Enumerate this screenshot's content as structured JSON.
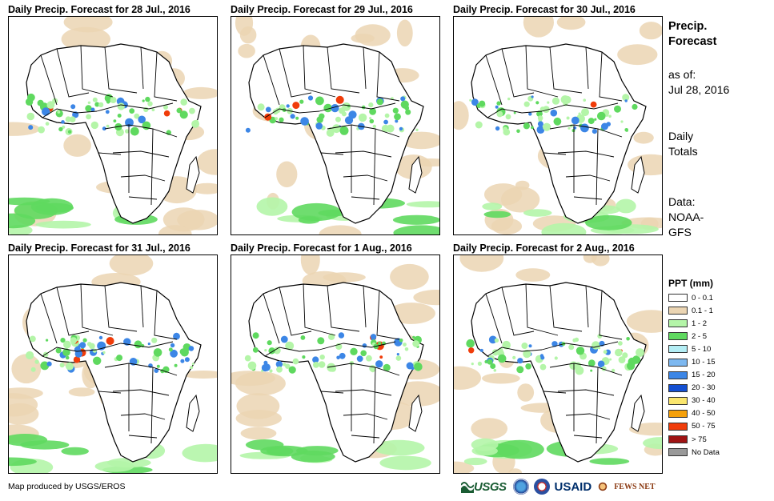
{
  "panels": [
    {
      "title": "Daily Precip. Forecast for 28 Jul., 2016"
    },
    {
      "title": "Daily Precip. Forecast for 29 Jul., 2016"
    },
    {
      "title": "Daily Precip. Forecast for 30 Jul., 2016"
    },
    {
      "title": "Daily Precip. Forecast for 31 Jul., 2016"
    },
    {
      "title": "Daily Precip. Forecast for 1 Aug., 2016"
    },
    {
      "title": "Daily Precip. Forecast for 2 Aug., 2016"
    }
  ],
  "sidebar": {
    "title_line1": "Precip.",
    "title_line2": "Forecast",
    "asof_label": "as of:",
    "asof_date": "Jul 28, 2016",
    "totals_line1": "Daily",
    "totals_line2": "Totals",
    "data_label": "Data:",
    "data_source_line1": "NOAA-",
    "data_source_line2": "GFS"
  },
  "legend": {
    "title": "PPT (mm)",
    "items": [
      {
        "label": "0 - 0.1",
        "color": "#ffffff"
      },
      {
        "label": "0.1 - 1",
        "color": "#ebd5b3"
      },
      {
        "label": "1 - 2",
        "color": "#b4f5a8"
      },
      {
        "label": "2 - 5",
        "color": "#5fd95f"
      },
      {
        "label": "5 - 10",
        "color": "#b4eef5"
      },
      {
        "label": "10 - 15",
        "color": "#7db8f0"
      },
      {
        "label": "15 - 20",
        "color": "#3c86e6"
      },
      {
        "label": "20 - 30",
        "color": "#1450d2"
      },
      {
        "label": "30 - 40",
        "color": "#fae66e"
      },
      {
        "label": "40 - 50",
        "color": "#f5a00a"
      },
      {
        "label": "50 - 75",
        "color": "#f03c0a"
      },
      {
        "label": "> 75",
        "color": "#a01414"
      },
      {
        "label": "No Data",
        "color": "#999999"
      }
    ]
  },
  "credit": "Map produced by USGS/EROS",
  "logos": {
    "usgs": "USGS",
    "usaid": "USAID",
    "fews": "FEWS NET"
  },
  "colors": {
    "land": "#ffffff",
    "border": "#000000",
    "dry": "#ebd5b3",
    "light": "#b4f5a8",
    "moderate": "#5fd95f",
    "heavy": "#3c86e6",
    "extreme": "#f03c0a"
  }
}
